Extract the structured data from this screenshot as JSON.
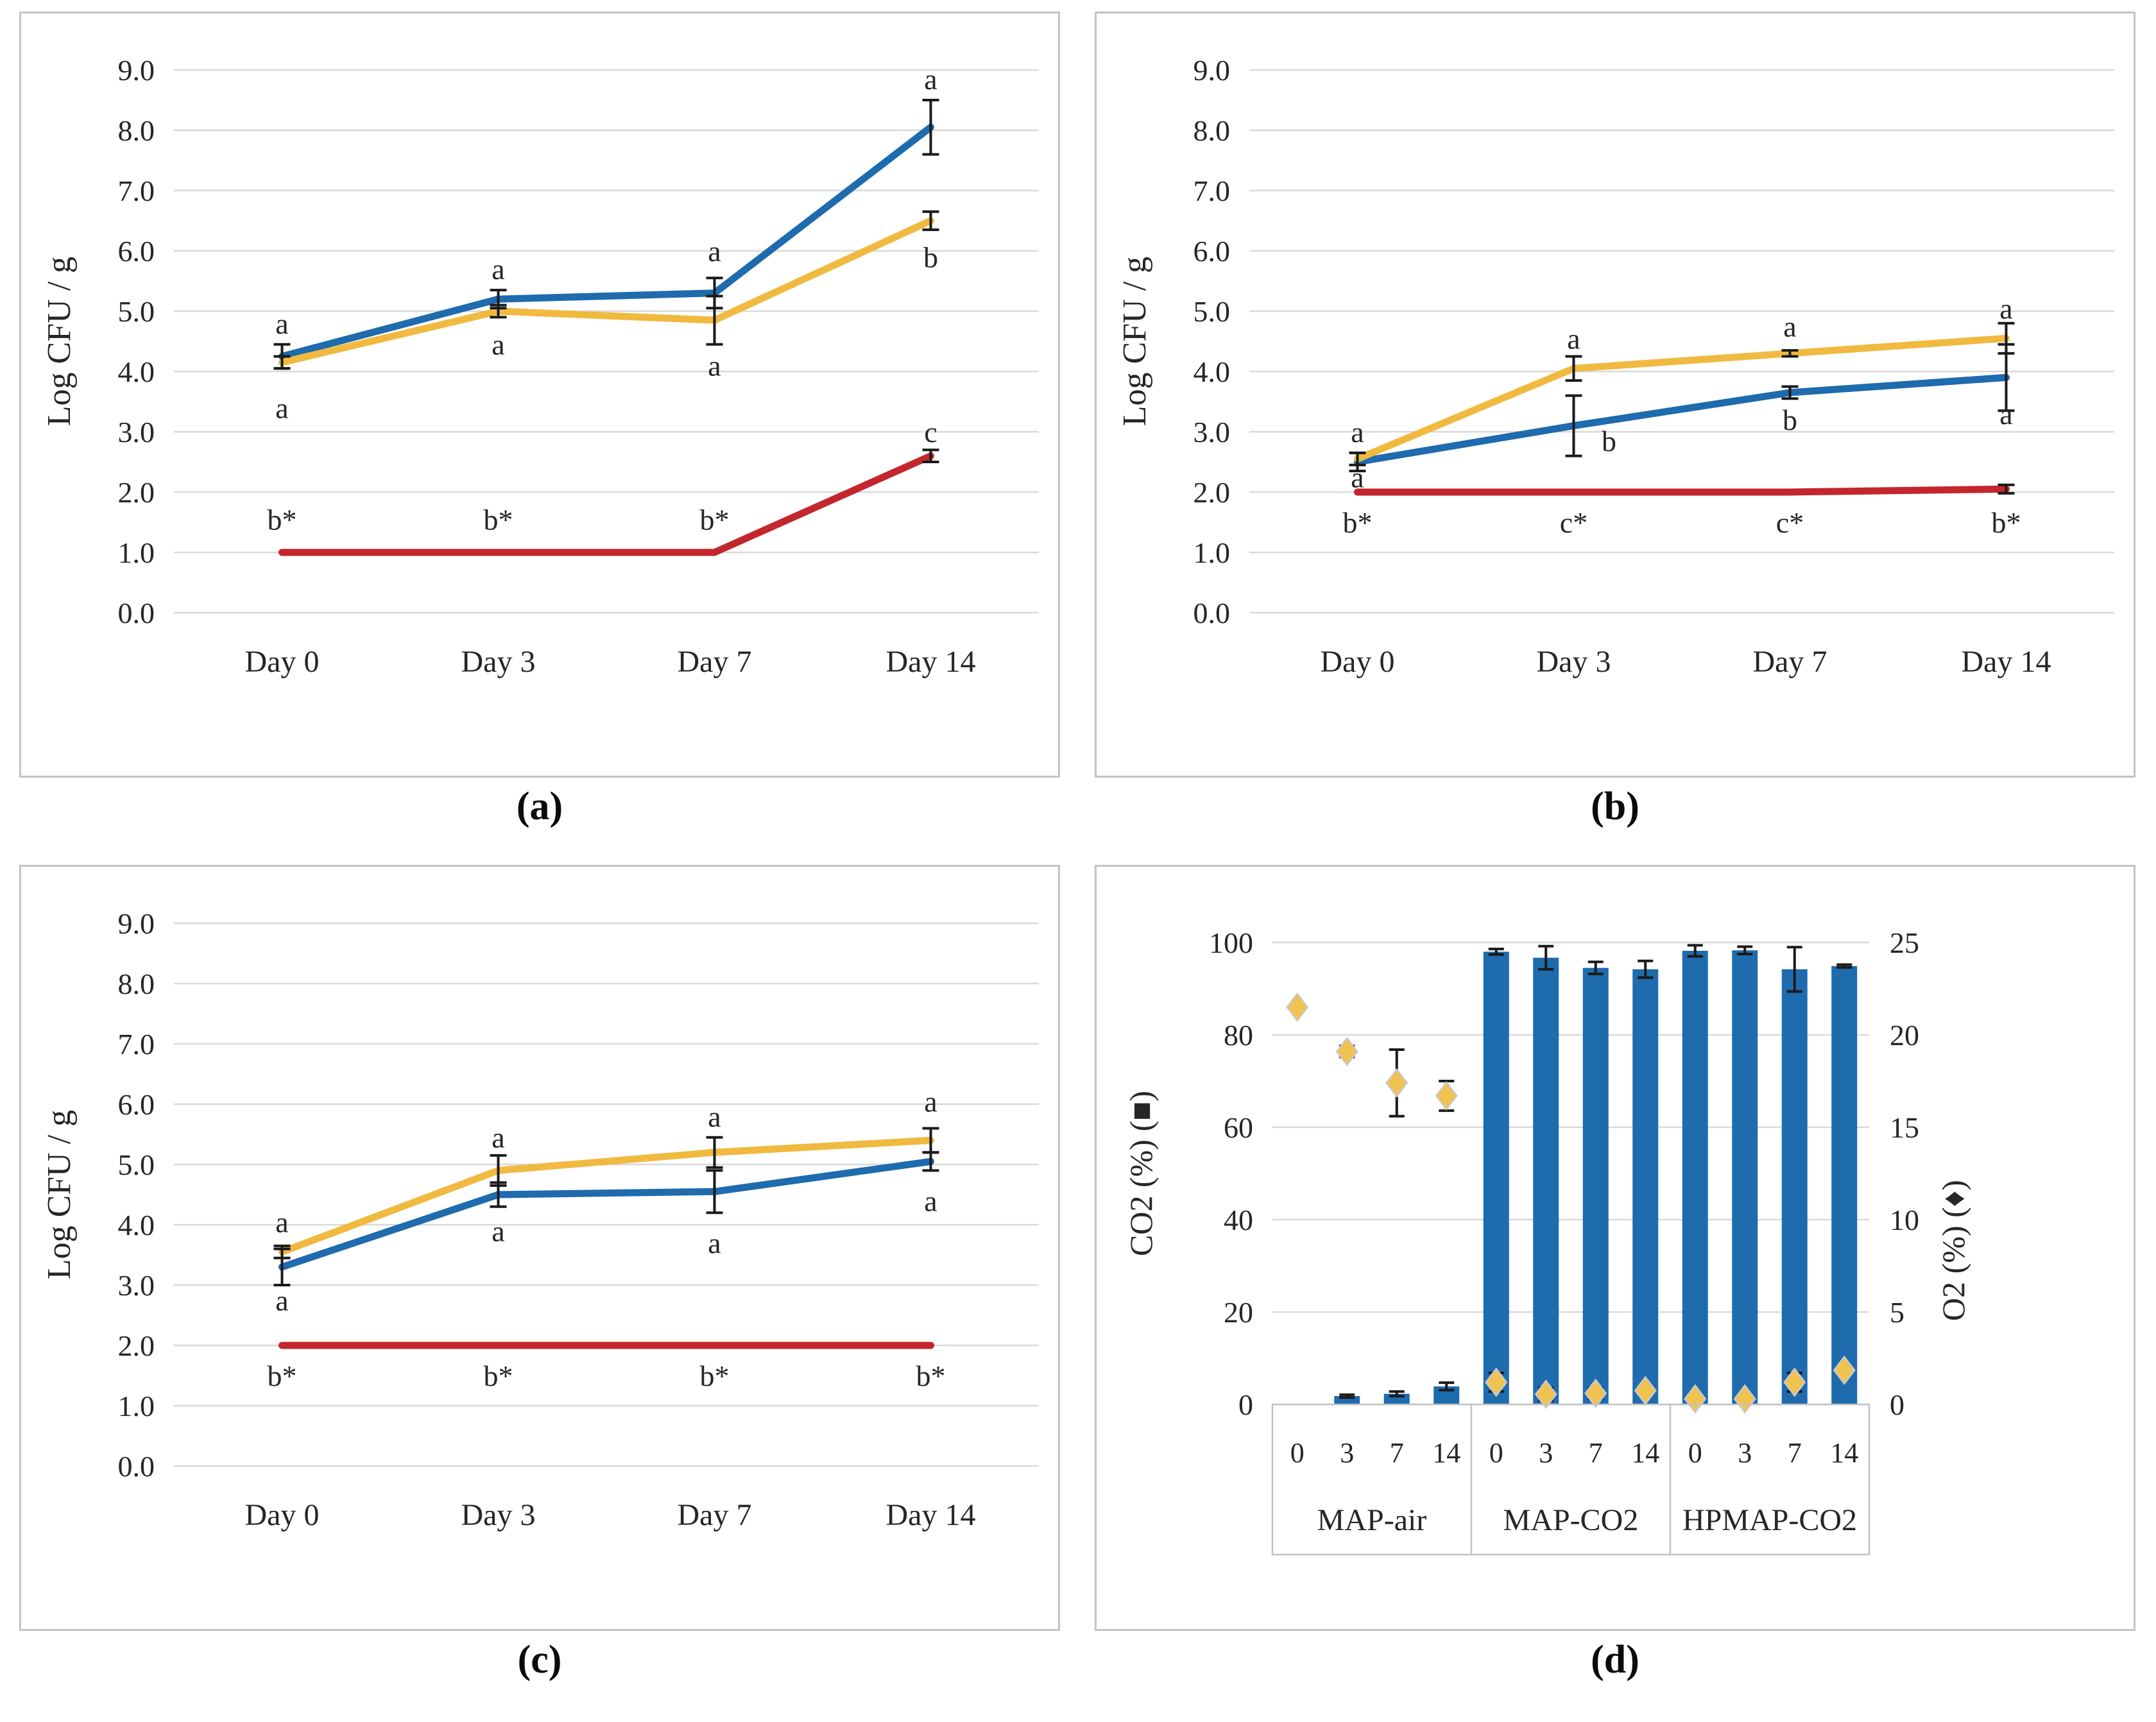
{
  "figure": {
    "panels": [
      {
        "id": "a",
        "caption": "(a)"
      },
      {
        "id": "b",
        "caption": "(b)"
      },
      {
        "id": "c",
        "caption": "(c)"
      },
      {
        "id": "d",
        "caption": "(d)"
      }
    ]
  },
  "colors": {
    "blue": "#1E6BAE",
    "yellow": "#F0BA40",
    "red": "#C4262E",
    "gridline": "#D9D9D9",
    "error": "#1a1a1a",
    "diamond_fill": "#F0C24F",
    "diamond_stroke": "#c9c9c9",
    "table_border": "#C3C3C3"
  },
  "chart_data": [
    {
      "id": "a",
      "type": "line",
      "ylabel": "Log CFU / g",
      "categories": [
        "Day 0",
        "Day 3",
        "Day 7",
        "Day 14"
      ],
      "ylim": [
        0,
        9
      ],
      "ytick_labels": [
        "0.0",
        "1.0",
        "2.0",
        "3.0",
        "4.0",
        "5.0",
        "6.0",
        "7.0",
        "8.0",
        "9.0"
      ],
      "grid": true,
      "legend": "none",
      "series": [
        {
          "name": "blue",
          "color": "#1E6BAE",
          "values": [
            4.25,
            5.2,
            5.3,
            8.05
          ],
          "errors": [
            0.2,
            0.15,
            0.25,
            0.45
          ]
        },
        {
          "name": "yellow",
          "color": "#F0BA40",
          "values": [
            4.15,
            5.0,
            4.85,
            6.5
          ],
          "errors": [
            0.1,
            0.1,
            0.4,
            0.15
          ]
        },
        {
          "name": "red",
          "color": "#C4262E",
          "values": [
            1.0,
            1.0,
            1.0,
            2.6
          ],
          "errors": [
            0,
            0,
            0,
            0.1
          ]
        }
      ],
      "annotations": [
        {
          "x": 0,
          "y": 4.8,
          "text": "a"
        },
        {
          "x": 0,
          "y": 3.4,
          "text": "a"
        },
        {
          "x": 1,
          "y": 5.7,
          "text": "a"
        },
        {
          "x": 1,
          "y": 4.45,
          "text": "a"
        },
        {
          "x": 2,
          "y": 6.0,
          "text": "a"
        },
        {
          "x": 2,
          "y": 4.1,
          "text": "a"
        },
        {
          "x": 3,
          "y": 8.85,
          "text": "a"
        },
        {
          "x": 3,
          "y": 5.9,
          "text": "b"
        },
        {
          "x": 3,
          "y": 3.0,
          "text": "c"
        },
        {
          "x": 0,
          "y": 1.55,
          "text": "b*"
        },
        {
          "x": 1,
          "y": 1.55,
          "text": "b*"
        },
        {
          "x": 2,
          "y": 1.55,
          "text": "b*"
        }
      ]
    },
    {
      "id": "b",
      "type": "line",
      "ylabel": "Log CFU / g",
      "categories": [
        "Day 0",
        "Day 3",
        "Day 7",
        "Day 14"
      ],
      "ylim": [
        0,
        9
      ],
      "ytick_labels": [
        "0.0",
        "1.0",
        "2.0",
        "3.0",
        "4.0",
        "5.0",
        "6.0",
        "7.0",
        "8.0",
        "9.0"
      ],
      "grid": true,
      "legend": "none",
      "series": [
        {
          "name": "blue",
          "color": "#1E6BAE",
          "values": [
            2.5,
            3.1,
            3.65,
            3.9
          ],
          "errors": [
            0.15,
            0.5,
            0.1,
            0.55
          ]
        },
        {
          "name": "yellow",
          "color": "#F0BA40",
          "values": [
            2.55,
            4.05,
            4.3,
            4.55
          ],
          "errors": [
            0.1,
            0.2,
            0.05,
            0.25
          ]
        },
        {
          "name": "red",
          "color": "#C4262E",
          "values": [
            2.0,
            2.0,
            2.0,
            2.05
          ],
          "errors": [
            0,
            0,
            0,
            0.07
          ]
        }
      ],
      "annotations": [
        {
          "x": 0,
          "y": 3.0,
          "text": "a"
        },
        {
          "x": 0,
          "y": 2.25,
          "text": "a"
        },
        {
          "x": 1,
          "y": 4.55,
          "text": "a"
        },
        {
          "x": 1,
          "y": 2.85,
          "text": "b",
          "dx": 55
        },
        {
          "x": 2,
          "y": 4.75,
          "text": "a"
        },
        {
          "x": 2,
          "y": 3.2,
          "text": "b"
        },
        {
          "x": 3,
          "y": 5.05,
          "text": "a"
        },
        {
          "x": 3,
          "y": 3.3,
          "text": "a"
        },
        {
          "x": 0,
          "y": 1.5,
          "text": "b*"
        },
        {
          "x": 1,
          "y": 1.5,
          "text": "c*"
        },
        {
          "x": 2,
          "y": 1.5,
          "text": "c*"
        },
        {
          "x": 3,
          "y": 1.5,
          "text": "b*"
        }
      ]
    },
    {
      "id": "c",
      "type": "line",
      "ylabel": "Log CFU / g",
      "categories": [
        "Day 0",
        "Day 3",
        "Day 7",
        "Day 14"
      ],
      "ylim": [
        0,
        9
      ],
      "ytick_labels": [
        "0.0",
        "1.0",
        "2.0",
        "3.0",
        "4.0",
        "5.0",
        "6.0",
        "7.0",
        "8.0",
        "9.0"
      ],
      "grid": true,
      "legend": "none",
      "series": [
        {
          "name": "blue",
          "color": "#1E6BAE",
          "values": [
            3.3,
            4.5,
            4.55,
            5.05
          ],
          "errors": [
            0.3,
            0.2,
            0.35,
            0.15
          ]
        },
        {
          "name": "yellow",
          "color": "#F0BA40",
          "values": [
            3.55,
            4.9,
            5.2,
            5.4
          ],
          "errors": [
            0.1,
            0.25,
            0.25,
            0.2
          ]
        },
        {
          "name": "red",
          "color": "#C4262E",
          "values": [
            2.0,
            2.0,
            2.0,
            2.0
          ],
          "errors": [
            0,
            0,
            0,
            0
          ]
        }
      ],
      "annotations": [
        {
          "x": 0,
          "y": 4.05,
          "text": "a"
        },
        {
          "x": 0,
          "y": 2.75,
          "text": "a"
        },
        {
          "x": 1,
          "y": 5.45,
          "text": "a"
        },
        {
          "x": 1,
          "y": 3.9,
          "text": "a"
        },
        {
          "x": 2,
          "y": 5.8,
          "text": "a"
        },
        {
          "x": 2,
          "y": 3.7,
          "text": "a"
        },
        {
          "x": 3,
          "y": 6.05,
          "text": "a"
        },
        {
          "x": 3,
          "y": 4.4,
          "text": "a"
        },
        {
          "x": 0,
          "y": 1.5,
          "text": "b*"
        },
        {
          "x": 1,
          "y": 1.5,
          "text": "b*"
        },
        {
          "x": 2,
          "y": 1.5,
          "text": "b*"
        },
        {
          "x": 3,
          "y": 1.5,
          "text": "b*"
        }
      ]
    },
    {
      "id": "d",
      "type": "bar",
      "ylabel_left": "CO2 (%) (■)",
      "ylabel_right": "O2 (%) (♦)",
      "left_ticks": [
        "0",
        "20",
        "40",
        "60",
        "80",
        "100"
      ],
      "right_ticks": [
        "0",
        "5",
        "10",
        "15",
        "20",
        "25"
      ],
      "left_max": 100,
      "right_max": 25,
      "grid": true,
      "groups": [
        {
          "label": "MAP-air",
          "days": [
            "0",
            "3",
            "7",
            "14"
          ]
        },
        {
          "label": "MAP-CO2",
          "days": [
            "0",
            "3",
            "7",
            "14"
          ]
        },
        {
          "label": "HPMAP-CO2",
          "days": [
            "0",
            "3",
            "7",
            "14"
          ]
        }
      ],
      "bars_co2": {
        "series_name": "CO2 (%)",
        "values": [
          0,
          1.8,
          2.3,
          3.9,
          98,
          96.7,
          94.5,
          94.2,
          98.2,
          98.3,
          94.2,
          94.9
        ],
        "errors": [
          0,
          0.3,
          0.5,
          0.8,
          0.6,
          2.5,
          1.3,
          1.8,
          1.2,
          0.8,
          4.8,
          0.3
        ]
      },
      "points_o2": {
        "series_name": "O2 (%)",
        "values": [
          21.5,
          19.1,
          17.4,
          16.7,
          1.2,
          0.55,
          0.6,
          0.75,
          0.3,
          0.3,
          1.2,
          1.85
        ],
        "errors": [
          0,
          0.3,
          1.8,
          0.8,
          0.5,
          0.35,
          0.3,
          0.2,
          0.1,
          0.1,
          0.5,
          0.2
        ]
      }
    }
  ]
}
